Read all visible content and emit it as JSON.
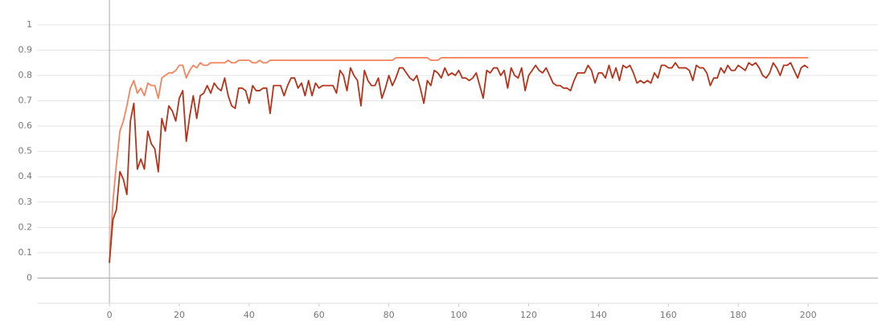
{
  "chart_data": {
    "type": "line",
    "xlim": [
      -20.5,
      220
    ],
    "ylim": [
      -0.1,
      1.098
    ],
    "xticks": [
      0,
      20,
      40,
      60,
      80,
      100,
      120,
      140,
      160,
      180,
      200
    ],
    "yticks": [
      0,
      0.1,
      0.2,
      0.3,
      0.4,
      0.5,
      0.6,
      0.7,
      0.8,
      0.9,
      1
    ],
    "grid": true,
    "x": [
      0,
      1,
      2,
      3,
      4,
      5,
      6,
      7,
      8,
      9,
      10,
      11,
      12,
      13,
      14,
      15,
      16,
      17,
      18,
      19,
      20,
      21,
      22,
      23,
      24,
      25,
      26,
      27,
      28,
      29,
      30,
      31,
      32,
      33,
      34,
      35,
      36,
      37,
      38,
      39,
      40,
      41,
      42,
      43,
      44,
      45,
      46,
      47,
      48,
      49,
      50,
      51,
      52,
      53,
      54,
      55,
      56,
      57,
      58,
      59,
      60,
      61,
      62,
      63,
      64,
      65,
      66,
      67,
      68,
      69,
      70,
      71,
      72,
      73,
      74,
      75,
      76,
      77,
      78,
      79,
      80,
      81,
      82,
      83,
      84,
      85,
      86,
      87,
      88,
      89,
      90,
      91,
      92,
      93,
      94,
      95,
      96,
      97,
      98,
      99,
      100,
      101,
      102,
      103,
      104,
      105,
      106,
      107,
      108,
      109,
      110,
      111,
      112,
      113,
      114,
      115,
      116,
      117,
      118,
      119,
      120,
      121,
      122,
      123,
      124,
      125,
      126,
      127,
      128,
      129,
      130,
      131,
      132,
      133,
      134,
      135,
      136,
      137,
      138,
      139,
      140,
      141,
      142,
      143,
      144,
      145,
      146,
      147,
      148,
      149,
      150,
      151,
      152,
      153,
      154,
      155,
      156,
      157,
      158,
      159,
      160,
      161,
      162,
      163,
      164,
      165,
      166,
      167,
      168,
      169,
      170,
      171,
      172,
      173,
      174,
      175,
      176,
      177,
      178,
      179,
      180,
      181,
      182,
      183,
      184,
      185,
      186,
      187,
      188,
      189,
      190,
      191,
      192,
      193,
      194,
      195,
      196,
      197,
      198,
      199,
      200
    ],
    "series": [
      {
        "color": "#f4845f",
        "values": [
          0.06,
          0.3,
          0.45,
          0.58,
          0.62,
          0.68,
          0.75,
          0.78,
          0.73,
          0.75,
          0.72,
          0.77,
          0.76,
          0.76,
          0.71,
          0.79,
          0.8,
          0.81,
          0.81,
          0.82,
          0.84,
          0.84,
          0.79,
          0.82,
          0.84,
          0.83,
          0.85,
          0.84,
          0.84,
          0.85,
          0.85,
          0.85,
          0.85,
          0.85,
          0.86,
          0.85,
          0.85,
          0.86,
          0.86,
          0.86,
          0.86,
          0.85,
          0.85,
          0.86,
          0.85,
          0.85,
          0.86,
          0.86,
          0.86,
          0.86,
          0.86,
          0.86,
          0.86,
          0.86,
          0.86,
          0.86,
          0.86,
          0.86,
          0.86,
          0.86,
          0.86,
          0.86,
          0.86,
          0.86,
          0.86,
          0.86,
          0.86,
          0.86,
          0.86,
          0.86,
          0.86,
          0.86,
          0.86,
          0.86,
          0.86,
          0.86,
          0.86,
          0.86,
          0.86,
          0.86,
          0.86,
          0.86,
          0.87,
          0.87,
          0.87,
          0.87,
          0.87,
          0.87,
          0.87,
          0.87,
          0.87,
          0.87,
          0.86,
          0.86,
          0.86,
          0.87,
          0.87,
          0.87,
          0.87,
          0.87,
          0.87,
          0.87,
          0.87,
          0.87,
          0.87,
          0.87,
          0.87,
          0.87,
          0.87,
          0.87,
          0.87,
          0.87,
          0.87,
          0.87,
          0.87,
          0.87,
          0.87,
          0.87,
          0.87,
          0.87,
          0.87,
          0.87,
          0.87,
          0.87,
          0.87,
          0.87,
          0.87,
          0.87,
          0.87,
          0.87,
          0.87,
          0.87,
          0.87,
          0.87,
          0.87,
          0.87,
          0.87,
          0.87,
          0.87,
          0.87,
          0.87,
          0.87,
          0.87,
          0.87,
          0.87,
          0.87,
          0.87,
          0.87,
          0.87,
          0.87,
          0.87,
          0.87,
          0.87,
          0.87,
          0.87,
          0.87,
          0.87,
          0.87,
          0.87,
          0.87,
          0.87,
          0.87,
          0.87,
          0.87,
          0.87,
          0.87,
          0.87,
          0.87,
          0.87,
          0.87,
          0.87,
          0.87,
          0.87,
          0.87,
          0.87,
          0.87,
          0.87,
          0.87,
          0.87,
          0.87,
          0.87,
          0.87,
          0.87,
          0.87,
          0.87,
          0.87,
          0.87,
          0.87,
          0.87,
          0.87,
          0.87,
          0.87,
          0.87,
          0.87,
          0.87,
          0.87,
          0.87,
          0.87,
          0.87,
          0.87,
          0.87
        ]
      },
      {
        "color": "#b5331a",
        "values": [
          0.06,
          0.23,
          0.27,
          0.42,
          0.39,
          0.33,
          0.62,
          0.69,
          0.43,
          0.47,
          0.43,
          0.58,
          0.53,
          0.51,
          0.42,
          0.63,
          0.58,
          0.68,
          0.66,
          0.62,
          0.71,
          0.74,
          0.54,
          0.64,
          0.72,
          0.63,
          0.72,
          0.73,
          0.76,
          0.73,
          0.77,
          0.75,
          0.74,
          0.79,
          0.72,
          0.68,
          0.67,
          0.75,
          0.75,
          0.74,
          0.69,
          0.76,
          0.74,
          0.74,
          0.75,
          0.75,
          0.65,
          0.76,
          0.76,
          0.76,
          0.72,
          0.76,
          0.79,
          0.79,
          0.75,
          0.77,
          0.72,
          0.78,
          0.72,
          0.77,
          0.75,
          0.76,
          0.76,
          0.76,
          0.76,
          0.73,
          0.82,
          0.8,
          0.74,
          0.83,
          0.8,
          0.78,
          0.68,
          0.82,
          0.78,
          0.76,
          0.76,
          0.79,
          0.71,
          0.75,
          0.8,
          0.76,
          0.79,
          0.83,
          0.83,
          0.81,
          0.79,
          0.78,
          0.8,
          0.75,
          0.69,
          0.78,
          0.76,
          0.82,
          0.81,
          0.79,
          0.83,
          0.8,
          0.81,
          0.8,
          0.82,
          0.79,
          0.79,
          0.78,
          0.79,
          0.81,
          0.76,
          0.71,
          0.82,
          0.81,
          0.83,
          0.83,
          0.8,
          0.82,
          0.75,
          0.83,
          0.8,
          0.79,
          0.83,
          0.74,
          0.8,
          0.82,
          0.84,
          0.82,
          0.81,
          0.83,
          0.8,
          0.77,
          0.76,
          0.76,
          0.75,
          0.75,
          0.74,
          0.78,
          0.81,
          0.81,
          0.81,
          0.84,
          0.82,
          0.77,
          0.81,
          0.81,
          0.79,
          0.84,
          0.79,
          0.83,
          0.78,
          0.84,
          0.83,
          0.84,
          0.81,
          0.77,
          0.78,
          0.77,
          0.78,
          0.77,
          0.81,
          0.79,
          0.84,
          0.84,
          0.83,
          0.83,
          0.85,
          0.83,
          0.83,
          0.83,
          0.82,
          0.78,
          0.84,
          0.83,
          0.83,
          0.81,
          0.76,
          0.79,
          0.79,
          0.83,
          0.81,
          0.84,
          0.82,
          0.82,
          0.84,
          0.83,
          0.82,
          0.85,
          0.84,
          0.85,
          0.83,
          0.8,
          0.79,
          0.81,
          0.85,
          0.83,
          0.8,
          0.84,
          0.84,
          0.85,
          0.82,
          0.79,
          0.83,
          0.84,
          0.83
        ]
      }
    ]
  }
}
